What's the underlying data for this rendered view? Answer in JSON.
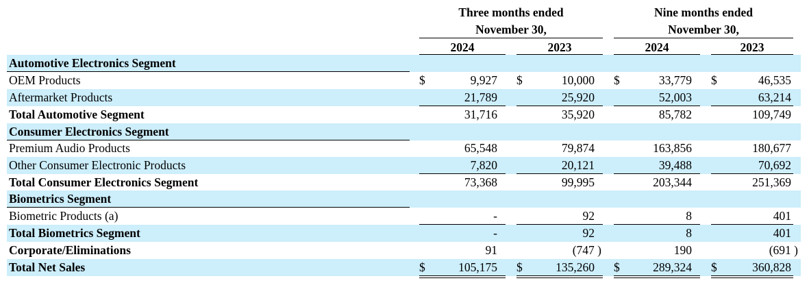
{
  "headers": {
    "three_months": [
      "Three months ended",
      "November 30,"
    ],
    "nine_months": [
      "Nine months ended",
      "November 30,"
    ],
    "years": [
      "2024",
      "2023",
      "2024",
      "2023"
    ]
  },
  "rows": [
    {
      "label": "Automotive Electronics Segment",
      "bold": true,
      "shade": true,
      "values": null
    },
    {
      "label": "OEM Products",
      "bold": false,
      "shade": false,
      "currency": true,
      "values": [
        "9,927",
        "10,000",
        "33,779",
        "46,535"
      ]
    },
    {
      "label": "Aftermarket Products",
      "bold": false,
      "shade": true,
      "values": [
        "21,789",
        "25,920",
        "52,003",
        "63,214"
      ]
    },
    {
      "label": "Total Automotive Segment",
      "bold": true,
      "shade": false,
      "values": [
        "31,716",
        "35,920",
        "85,782",
        "109,749"
      ]
    },
    {
      "label": "Consumer Electronics Segment",
      "bold": true,
      "shade": true,
      "values": null
    },
    {
      "label": "Premium Audio Products",
      "bold": false,
      "shade": false,
      "values": [
        "65,548",
        "79,874",
        "163,856",
        "180,677"
      ]
    },
    {
      "label": "Other Consumer Electronic Products",
      "bold": false,
      "shade": true,
      "values": [
        "7,820",
        "20,121",
        "39,488",
        "70,692"
      ]
    },
    {
      "label": "Total Consumer Electronics Segment",
      "bold": true,
      "shade": false,
      "values": [
        "73,368",
        "99,995",
        "203,344",
        "251,369"
      ]
    },
    {
      "label": "Biometrics Segment",
      "bold": true,
      "shade": true,
      "values": null
    },
    {
      "label": "Biometric Products (a)",
      "bold": false,
      "shade": false,
      "values": [
        "-",
        "92",
        "8",
        "401"
      ]
    },
    {
      "label": "Total Biometrics Segment",
      "bold": true,
      "shade": true,
      "values": [
        "-",
        "92",
        "8",
        "401"
      ]
    },
    {
      "label": "Corporate/Eliminations",
      "bold": true,
      "shade": false,
      "values": [
        "91",
        "(747 )",
        "190",
        "(691 )"
      ]
    },
    {
      "label": "Total Net Sales",
      "bold": true,
      "shade": true,
      "currency": true,
      "values": [
        "105,175",
        "135,260",
        "289,324",
        "360,828"
      ]
    }
  ],
  "currency_symbol": "$"
}
